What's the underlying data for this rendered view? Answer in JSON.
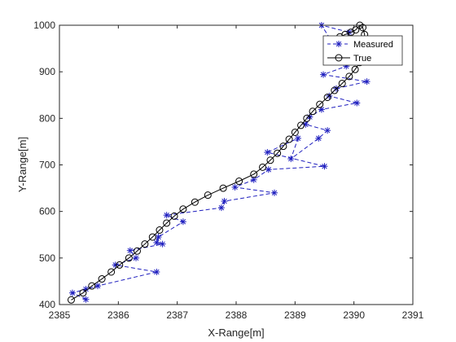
{
  "chart_data": {
    "type": "line",
    "xlabel": "X-Range[m]",
    "ylabel": "Y-Range[m]",
    "xlim": [
      2385,
      2391
    ],
    "ylim": [
      400,
      1000
    ],
    "xticks": [
      2385,
      2386,
      2387,
      2388,
      2389,
      2390,
      2391
    ],
    "yticks": [
      400,
      500,
      600,
      700,
      800,
      900,
      1000
    ],
    "grid": false,
    "legend_position": "top-right",
    "series": [
      {
        "name": "Measured",
        "style": "dashed, asterisk markers",
        "color": "#1f1fbf",
        "x": [
          2385.45,
          2385.22,
          2385.45,
          2385.65,
          2386.65,
          2385.95,
          2386.3,
          2386.2,
          2386.75,
          2386.65,
          2386.68,
          2387.1,
          2386.82,
          2387.75,
          2387.8,
          2388.65,
          2387.98,
          2388.3,
          2388.55,
          2389.5,
          2388.53,
          2389.05,
          2388.93,
          2389.4,
          2389.55,
          2389.18,
          2389.25,
          2389.45,
          2390.05,
          2389.58,
          2389.7,
          2390.22,
          2389.48,
          2389.87,
          2390.15,
          2389.6,
          2389.45,
          2389.92
        ],
        "y": [
          411,
          425,
          433,
          440,
          470,
          485,
          500,
          516,
          530,
          533,
          545,
          578,
          592,
          608,
          622,
          640,
          652,
          668,
          690,
          697,
          727,
          757,
          713,
          757,
          774,
          787,
          803,
          819,
          833,
          848,
          864,
          879,
          894,
          912,
          934,
          970,
          1000,
          985
        ]
      },
      {
        "name": "True",
        "style": "solid, circle markers",
        "color": "#000000",
        "x": [
          2385.2,
          2385.4,
          2385.55,
          2385.72,
          2385.88,
          2386.02,
          2386.18,
          2386.32,
          2386.45,
          2386.58,
          2386.7,
          2386.82,
          2386.95,
          2387.1,
          2387.3,
          2387.52,
          2387.78,
          2388.05,
          2388.3,
          2388.45,
          2388.58,
          2388.7,
          2388.8,
          2388.9,
          2389.0,
          2389.1,
          2389.2,
          2389.3,
          2389.42,
          2389.55,
          2389.67,
          2389.8,
          2389.92,
          2390.02,
          2390.1,
          2390.15,
          2390.17,
          2390.18,
          2390.18,
          2390.15,
          2390.1,
          2390.03,
          2389.95,
          2389.85,
          2389.76
        ],
        "y": [
          410,
          425,
          440,
          455,
          470,
          485,
          500,
          515,
          530,
          545,
          560,
          575,
          590,
          605,
          620,
          635,
          650,
          665,
          680,
          695,
          710,
          725,
          740,
          755,
          770,
          785,
          800,
          815,
          830,
          845,
          860,
          875,
          890,
          905,
          920,
          935,
          950,
          965,
          980,
          995,
          1000,
          990,
          985,
          980,
          975
        ]
      }
    ]
  }
}
